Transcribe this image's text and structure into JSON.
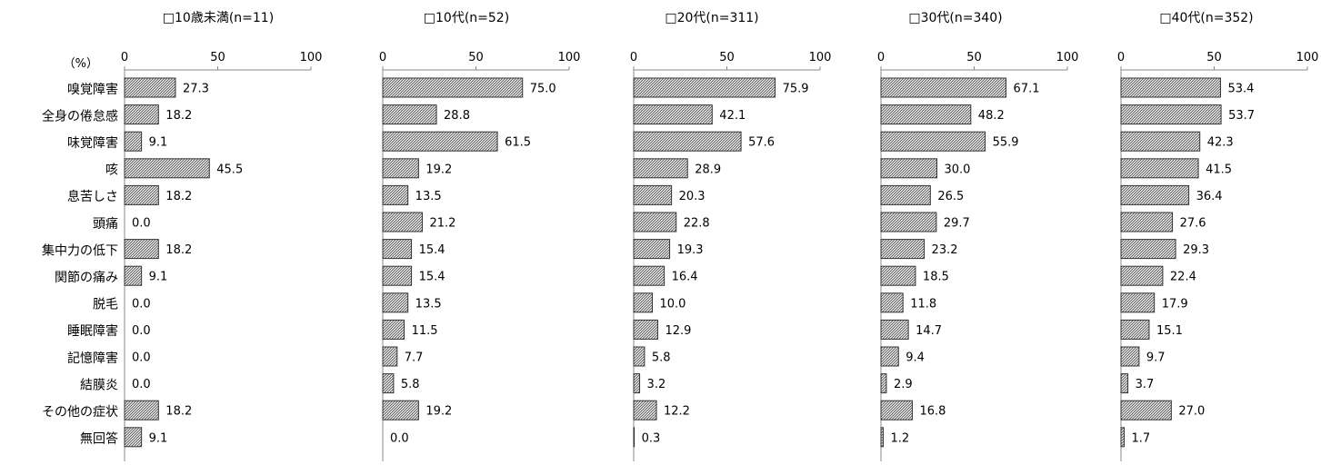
{
  "chart_data": {
    "type": "bar",
    "orientation": "horizontal",
    "unit_label": "（%）",
    "categories": [
      "嗅覚障害",
      "全身の倦怠感",
      "味覚障害",
      "咳",
      "息苦しさ",
      "頭痛",
      "集中力の低下",
      "関節の痛み",
      "脱毛",
      "睡眠障害",
      "記憶障害",
      "結膜炎",
      "その他の症状",
      "無回答"
    ],
    "xlim": [
      0,
      100
    ],
    "xticks": [
      0,
      50,
      100
    ],
    "bar_fill": "hatched-gray",
    "panels": [
      {
        "title": "□10歳未満(n=11)",
        "values": [
          27.3,
          18.2,
          9.1,
          45.5,
          18.2,
          0.0,
          18.2,
          9.1,
          0.0,
          0.0,
          0.0,
          0.0,
          18.2,
          9.1
        ]
      },
      {
        "title": "□10代(n=52)",
        "values": [
          75.0,
          28.8,
          61.5,
          19.2,
          13.5,
          21.2,
          15.4,
          15.4,
          13.5,
          11.5,
          7.7,
          5.8,
          19.2,
          0.0
        ]
      },
      {
        "title": "□20代(n=311)",
        "values": [
          75.9,
          42.1,
          57.6,
          28.9,
          20.3,
          22.8,
          19.3,
          16.4,
          10.0,
          12.9,
          5.8,
          3.2,
          12.2,
          0.3
        ]
      },
      {
        "title": "□30代(n=340)",
        "values": [
          67.1,
          48.2,
          55.9,
          30.0,
          26.5,
          29.7,
          23.2,
          18.5,
          11.8,
          14.7,
          9.4,
          2.9,
          16.8,
          1.2
        ]
      },
      {
        "title": "□40代(n=352)",
        "values": [
          53.4,
          53.7,
          42.3,
          41.5,
          36.4,
          27.6,
          29.3,
          22.4,
          17.9,
          15.1,
          9.7,
          3.7,
          27.0,
          1.7
        ]
      }
    ]
  }
}
